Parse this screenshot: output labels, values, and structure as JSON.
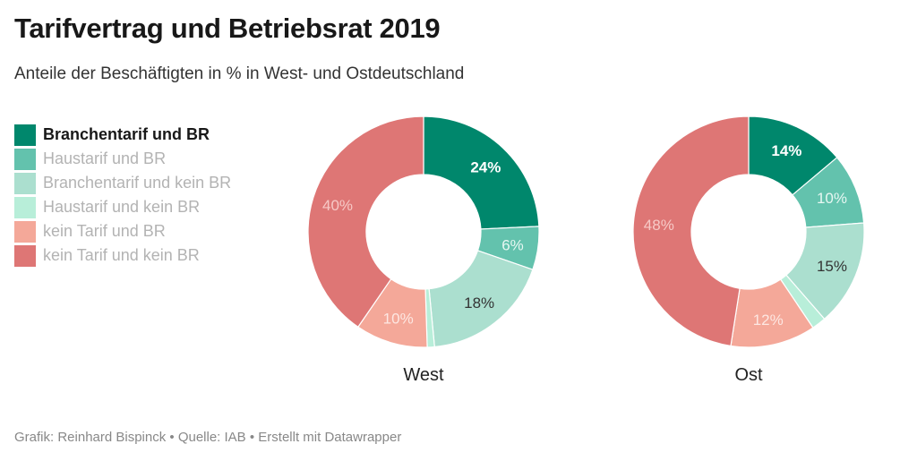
{
  "header": {
    "title": "Tarifvertrag und Betriebsrat 2019",
    "subtitle": "Anteile der Beschäftigten in % in West- und Ostdeutschland"
  },
  "footer": {
    "text": "Grafik: Reinhard Bispinck • Quelle: IAB • Erstellt mit Datawrapper"
  },
  "chart_data": {
    "type": "pie",
    "variant": "donut",
    "title": "Tarifvertrag und Betriebsrat 2019",
    "subtitle": "Anteile der Beschäftigten in % in West- und Ostdeutschland",
    "legend_position": "left",
    "categories": [
      "Branchentarif und BR",
      "Haustarif und BR",
      "Branchentarif und kein BR",
      "Haustarif und kein BR",
      "kein Tarif und BR",
      "kein Tarif und kein BR"
    ],
    "colors": [
      "#00876c",
      "#63c2ad",
      "#abdfcf",
      "#b8eed9",
      "#f4a899",
      "#de7675"
    ],
    "label_colors": [
      "#ffffff",
      "#e7f7f2",
      "#333333",
      "",
      "#fde7e2",
      "#f7c9c6"
    ],
    "label_bold": [
      true,
      false,
      false,
      false,
      false,
      false
    ],
    "highlighted_category": "Branchentarif und BR",
    "series": [
      {
        "name": "West",
        "values": [
          24,
          6,
          18,
          1,
          10,
          40
        ],
        "labels": [
          "24%",
          "6%",
          "18%",
          "",
          "10%",
          "40%"
        ]
      },
      {
        "name": "Ost",
        "values": [
          14,
          10,
          15,
          2,
          12,
          48
        ],
        "labels": [
          "14%",
          "10%",
          "15%",
          "",
          "12%",
          "48%"
        ]
      }
    ],
    "unit": "%"
  }
}
